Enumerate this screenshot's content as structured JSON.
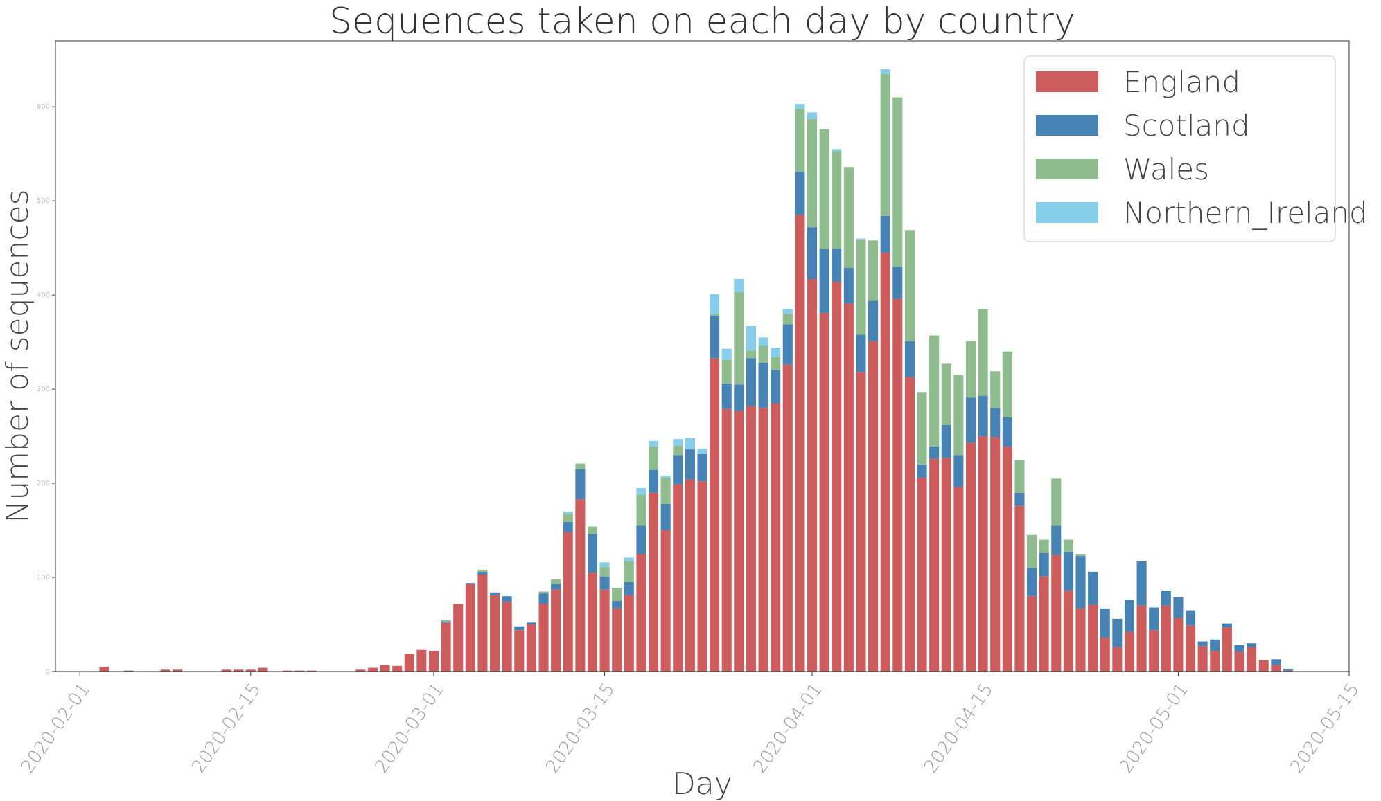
{
  "chart_data": {
    "type": "bar",
    "stacked": true,
    "title": "Sequences taken on each day by country",
    "xlabel": "Day",
    "ylabel": "Number of sequences",
    "ylim": [
      0,
      670
    ],
    "yticks": [
      0,
      100,
      200,
      300,
      400,
      500,
      600
    ],
    "xlim": [
      "2020-01-30",
      "2020-05-15"
    ],
    "xticks": [
      "2020-02-01",
      "2020-02-15",
      "2020-03-01",
      "2020-03-15",
      "2020-04-01",
      "2020-04-15",
      "2020-05-01",
      "2020-05-15"
    ],
    "grid": false,
    "legend_position": "top-right",
    "start_date": "2020-02-01",
    "series": [
      {
        "name": "England",
        "color": "#cd5c5c",
        "values": [
          0,
          0,
          5,
          0,
          1,
          0,
          0,
          2,
          2,
          0,
          0,
          0,
          2,
          2,
          2,
          4,
          0,
          1,
          1,
          1,
          0,
          0,
          0,
          2,
          4,
          7,
          6,
          19,
          23,
          22,
          52,
          72,
          93,
          103,
          81,
          74,
          44,
          50,
          72,
          87,
          148,
          183,
          105,
          87,
          67,
          81,
          125,
          190,
          150,
          199,
          204,
          202,
          333,
          279,
          277,
          282,
          280,
          285,
          326,
          485,
          417,
          381,
          414,
          391,
          318,
          351,
          445,
          396,
          313,
          206,
          226,
          227,
          196,
          243,
          250,
          249,
          239,
          176,
          80,
          101,
          124,
          86,
          67,
          71,
          36,
          26,
          42,
          70,
          44,
          70,
          57,
          49,
          27,
          22,
          47,
          21,
          26,
          12,
          7,
          1,
          0
        ]
      },
      {
        "name": "Scotland",
        "color": "#4682b4",
        "values": [
          0,
          0,
          0,
          0,
          0,
          0,
          0,
          0,
          0,
          0,
          0,
          0,
          0,
          0,
          0,
          0,
          0,
          0,
          0,
          0,
          0,
          0,
          0,
          0,
          0,
          0,
          0,
          0,
          0,
          0,
          1,
          0,
          1,
          3,
          3,
          6,
          4,
          2,
          11,
          6,
          11,
          32,
          41,
          14,
          8,
          14,
          30,
          24,
          28,
          31,
          32,
          29,
          45,
          27,
          28,
          51,
          48,
          35,
          43,
          46,
          55,
          68,
          35,
          38,
          40,
          43,
          39,
          34,
          38,
          14,
          13,
          35,
          34,
          48,
          43,
          31,
          31,
          14,
          30,
          25,
          31,
          41,
          56,
          35,
          31,
          30,
          34,
          47,
          24,
          16,
          22,
          16,
          5,
          12,
          4,
          7,
          4,
          0,
          6,
          2,
          0
        ]
      },
      {
        "name": "Wales",
        "color": "#8fbc8f",
        "values": [
          0,
          0,
          0,
          0,
          0,
          0,
          0,
          0,
          0,
          0,
          0,
          0,
          0,
          0,
          0,
          0,
          0,
          0,
          0,
          0,
          0,
          0,
          0,
          0,
          0,
          0,
          0,
          0,
          0,
          0,
          2,
          0,
          0,
          2,
          0,
          0,
          0,
          0,
          2,
          5,
          9,
          6,
          8,
          10,
          14,
          22,
          33,
          25,
          28,
          10,
          0,
          0,
          2,
          25,
          98,
          8,
          18,
          14,
          11,
          67,
          115,
          127,
          104,
          107,
          101,
          64,
          151,
          180,
          118,
          77,
          118,
          65,
          85,
          60,
          92,
          39,
          70,
          35,
          35,
          14,
          50,
          13,
          2,
          0,
          0,
          0,
          0,
          0,
          0,
          0,
          0,
          0,
          0,
          0,
          0,
          0,
          0,
          0,
          0,
          0,
          0
        ]
      },
      {
        "name": "Northern_Ireland",
        "color": "#87ceeb",
        "values": [
          0,
          0,
          0,
          0,
          0,
          0,
          0,
          0,
          0,
          0,
          0,
          0,
          0,
          0,
          0,
          0,
          0,
          0,
          0,
          0,
          0,
          0,
          0,
          0,
          0,
          0,
          0,
          0,
          0,
          0,
          0,
          0,
          0,
          0,
          0,
          0,
          0,
          0,
          0,
          0,
          2,
          0,
          0,
          5,
          0,
          4,
          7,
          6,
          2,
          7,
          12,
          6,
          21,
          12,
          14,
          26,
          9,
          10,
          5,
          5,
          7,
          0,
          2,
          0,
          1,
          0,
          5,
          0,
          0,
          0,
          0,
          0,
          0,
          0,
          0,
          0,
          0,
          0,
          0,
          0,
          0,
          0,
          0,
          0,
          0,
          0,
          0,
          0,
          0,
          0,
          0,
          0,
          0,
          0,
          0,
          0,
          0,
          0,
          0,
          0,
          0
        ]
      }
    ]
  }
}
